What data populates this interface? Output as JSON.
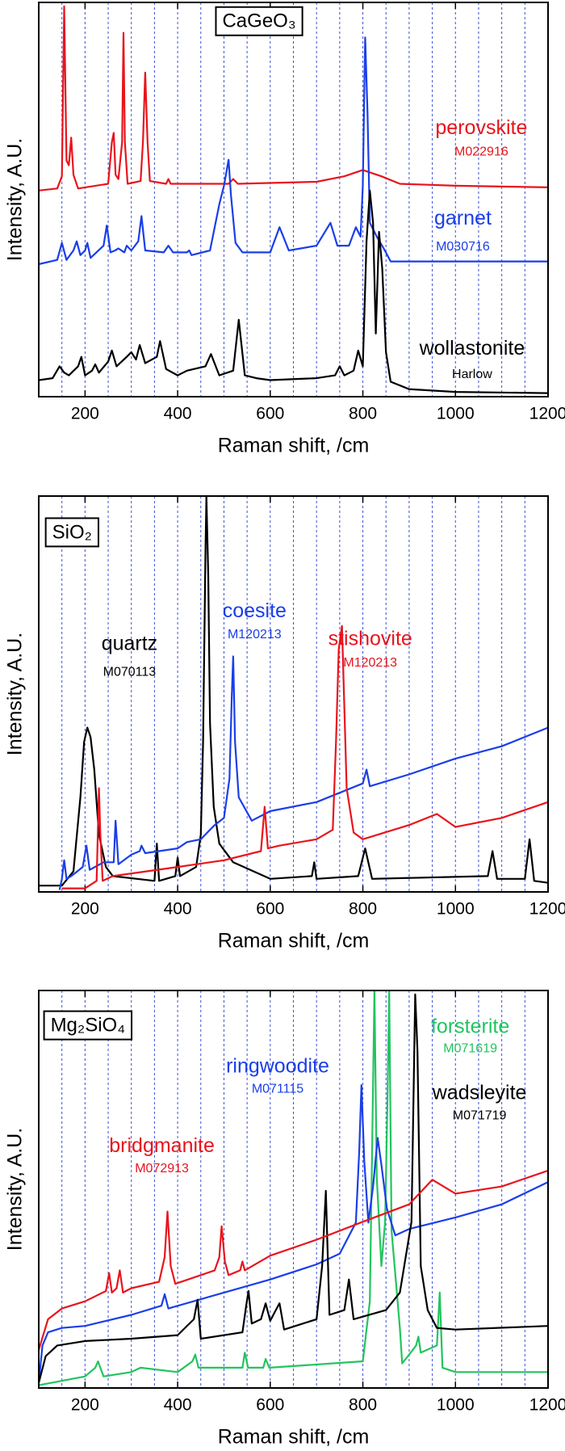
{
  "chart_data": [
    {
      "type": "line",
      "title": "CaGeO₃",
      "xlabel": "Raman shift, /cm",
      "ylabel": "Intensity, A.U.",
      "xlim": [
        100,
        1200
      ],
      "ylim": [
        0,
        100
      ],
      "xticks": [
        200,
        400,
        600,
        800,
        1000,
        1200
      ],
      "xgrid": [
        150,
        200,
        250,
        300,
        350,
        400,
        450,
        500,
        550,
        600,
        650,
        700,
        750,
        800,
        850,
        900,
        950,
        1000,
        1050,
        1100,
        1150
      ],
      "grid_color": "#3a4fd6",
      "series": [
        {
          "name": "perovskite",
          "sample_id": "M022916",
          "color": "#e8141c",
          "x": [
            100,
            140,
            150,
            155,
            160,
            165,
            170,
            175,
            185,
            250,
            258,
            262,
            266,
            272,
            280,
            283,
            286,
            292,
            320,
            325,
            330,
            335,
            340,
            375,
            380,
            385,
            510,
            520,
            530,
            700,
            760,
            800,
            840,
            880,
            1000,
            1200
          ],
          "values": [
            52.3,
            52.8,
            55.9,
            99,
            59.9,
            58.7,
            65.7,
            56.3,
            52.8,
            54,
            64.6,
            66.9,
            56.3,
            55.2,
            64.6,
            92.3,
            64.6,
            54,
            54.7,
            64.6,
            82.2,
            64.6,
            54.7,
            54,
            55.2,
            54,
            54,
            55.2,
            54,
            54.5,
            55.9,
            57.5,
            55.9,
            54,
            53.5,
            53.1
          ]
        },
        {
          "name": "garnet",
          "sample_id": "M030716",
          "color": "#1a3ee8",
          "x": [
            100,
            140,
            150,
            160,
            175,
            182,
            190,
            200,
            205,
            212,
            240,
            247,
            255,
            265,
            272,
            285,
            290,
            300,
            315,
            322,
            330,
            370,
            380,
            390,
            420,
            425,
            430,
            470,
            490,
            500,
            510,
            515,
            525,
            540,
            600,
            620,
            640,
            700,
            730,
            745,
            770,
            785,
            795,
            800,
            805,
            810,
            815,
            830,
            845,
            860,
            1000,
            1200
          ],
          "values": [
            33.6,
            34.7,
            39,
            34.7,
            37.1,
            39.4,
            35.9,
            37.1,
            39,
            35.2,
            38.3,
            43.4,
            36.6,
            37.1,
            37.6,
            36.6,
            38.3,
            37.1,
            39.4,
            45.8,
            37.1,
            36.6,
            38.3,
            36.6,
            36.6,
            37.1,
            35.9,
            37.1,
            48.8,
            53.5,
            60.1,
            51.2,
            39,
            36.6,
            36.6,
            43,
            37.1,
            38.3,
            44.1,
            38.3,
            38.3,
            43,
            40.6,
            53.5,
            91.1,
            72.3,
            44.1,
            40.6,
            37.6,
            34.3,
            34.3,
            34.3
          ]
        },
        {
          "name": "wollastonite",
          "sample_id": "Harlow",
          "color": "#000000",
          "x": [
            100,
            130,
            145,
            155,
            165,
            185,
            192,
            200,
            215,
            222,
            230,
            250,
            258,
            268,
            290,
            300,
            310,
            318,
            330,
            355,
            362,
            375,
            400,
            420,
            460,
            472,
            490,
            520,
            532,
            545,
            570,
            600,
            700,
            740,
            750,
            760,
            780,
            790,
            800,
            808,
            815,
            822,
            828,
            835,
            842,
            850,
            860,
            900,
            1000,
            1200
          ],
          "values": [
            4.2,
            4.7,
            7.7,
            6.1,
            5.4,
            7.7,
            10.1,
            5.4,
            6.6,
            8.2,
            6.1,
            8.9,
            11.7,
            7.7,
            10.1,
            11.3,
            9.4,
            13.1,
            8.5,
            10.1,
            14.1,
            7,
            5.4,
            6.6,
            7.7,
            10.8,
            5.4,
            6.6,
            19.5,
            5.4,
            4.7,
            4.2,
            4.7,
            5.4,
            7.7,
            5.4,
            6.6,
            11.7,
            7.7,
            39.4,
            52.3,
            44.1,
            16,
            41.8,
            32.4,
            11.3,
            3.8,
            1.9,
            1.2,
            0.9
          ]
        }
      ]
    },
    {
      "type": "line",
      "title": "SiO₂",
      "xlabel": "Raman shift, /cm",
      "ylabel": "Intensity, A.U.",
      "xlim": [
        100,
        1200
      ],
      "ylim": [
        0,
        100
      ],
      "xticks": [
        200,
        400,
        600,
        800,
        1000,
        1200
      ],
      "xgrid": [
        150,
        200,
        250,
        300,
        350,
        400,
        450,
        500,
        550,
        600,
        650,
        700,
        750,
        800,
        850,
        900,
        950,
        1000,
        1050,
        1100,
        1150
      ],
      "grid_color": "#3a4fd6",
      "series": [
        {
          "name": "quartz",
          "sample_id": "M070113",
          "color": "#000000",
          "x": [
            100,
            150,
            175,
            190,
            198,
            205,
            212,
            220,
            230,
            245,
            260,
            350,
            355,
            360,
            395,
            400,
            405,
            440,
            450,
            455,
            460,
            462,
            466,
            470,
            478,
            490,
            520,
            600,
            690,
            695,
            700,
            790,
            805,
            820,
            1070,
            1080,
            1090,
            1150,
            1160,
            1170,
            1200
          ],
          "values": [
            1.6,
            1.6,
            5.2,
            23.9,
            37.9,
            41.5,
            39.1,
            30.9,
            14.5,
            6.3,
            4,
            2.8,
            12.2,
            2.8,
            4,
            8.7,
            4,
            6.3,
            14.5,
            37.9,
            84.8,
            100,
            80.1,
            42.6,
            21.5,
            12.2,
            7.5,
            3.3,
            4,
            7.5,
            3.3,
            4,
            11,
            3.3,
            4,
            10.3,
            3.3,
            3.3,
            13.3,
            2.8,
            2.3
          ]
        },
        {
          "name": "coesite",
          "sample_id": "M120213",
          "color": "#1a3ee8",
          "x": [
            145,
            150,
            155,
            160,
            170,
            178,
            195,
            203,
            210,
            240,
            262,
            266,
            272,
            300,
            318,
            322,
            330,
            400,
            420,
            450,
            480,
            500,
            512,
            517,
            520,
            524,
            532,
            560,
            600,
            700,
            800,
            808,
            815,
            900,
            1000,
            1100,
            1200
          ],
          "values": [
            0.5,
            3.3,
            8,
            3.3,
            4,
            4.7,
            6.3,
            11.7,
            5.6,
            7.5,
            7.5,
            18,
            7,
            9.4,
            10.3,
            11.7,
            9.8,
            11,
            12.6,
            13.3,
            16.9,
            18.7,
            28.6,
            49.6,
            59.5,
            37.9,
            23.9,
            18,
            20.4,
            22.7,
            27.4,
            30.9,
            26.7,
            29.7,
            33.7,
            36.8,
            41.5
          ]
        },
        {
          "name": "stishovite",
          "sample_id": "M120213",
          "color": "#e8141c",
          "x": [
            150,
            200,
            225,
            230,
            233,
            238,
            260,
            400,
            500,
            580,
            588,
            595,
            620,
            700,
            735,
            742,
            748,
            755,
            765,
            780,
            800,
            900,
            960,
            1000,
            1100,
            1200
          ],
          "values": [
            0.9,
            0.9,
            2.8,
            26.2,
            14.5,
            2.8,
            4,
            6.3,
            8,
            10.3,
            21.5,
            11,
            11.7,
            13.3,
            15.7,
            37.9,
            61.4,
            67.2,
            26.2,
            15,
            13.3,
            16.9,
            19.7,
            16.4,
            18.7,
            22.7
          ]
        }
      ]
    },
    {
      "type": "line",
      "title": "Mg₂SiO₄",
      "xlabel": "Raman shift, /cm",
      "ylabel": "Intensity, A.U.",
      "xlim": [
        100,
        1200
      ],
      "ylim": [
        0,
        100
      ],
      "xticks": [
        200,
        400,
        600,
        800,
        1000,
        1200
      ],
      "xgrid": [
        150,
        200,
        250,
        300,
        350,
        400,
        450,
        500,
        550,
        600,
        650,
        700,
        750,
        800,
        850,
        900,
        950,
        1000,
        1050,
        1100,
        1150
      ],
      "grid_color": "#3a4fd6",
      "series": [
        {
          "name": "forsterite",
          "sample_id": "M071619",
          "color": "#22c45e",
          "x": [
            100,
            200,
            222,
            228,
            240,
            300,
            320,
            400,
            432,
            438,
            445,
            540,
            545,
            552,
            585,
            590,
            598,
            800,
            815,
            820,
            825,
            830,
            840,
            848,
            853,
            857,
            862,
            875,
            880,
            885,
            900,
            915,
            920,
            925,
            960,
            966,
            972,
            1000,
            1200
          ],
          "values": [
            0.7,
            2.9,
            5.1,
            6.7,
            2.9,
            4,
            5.1,
            4,
            6.7,
            8.4,
            5.1,
            5.1,
            8.9,
            5.1,
            5.1,
            7.3,
            5.1,
            6.7,
            21.8,
            59.6,
            100,
            52.9,
            30.7,
            41.8,
            70.7,
            100,
            39.6,
            21.8,
            15.1,
            6.2,
            8.4,
            10.7,
            12.9,
            8.9,
            10.7,
            24,
            5.1,
            4,
            4
          ]
        },
        {
          "name": "ringwoodite",
          "sample_id": "M071115",
          "color": "#1a3ee8",
          "x": [
            100,
            108,
            120,
            150,
            200,
            300,
            365,
            372,
            380,
            500,
            600,
            700,
            750,
            785,
            792,
            797,
            803,
            812,
            822,
            832,
            840,
            852,
            870,
            900,
            1000,
            1100,
            1200
          ],
          "values": [
            1.3,
            10.7,
            14,
            15.1,
            15.6,
            18.4,
            20.7,
            23.6,
            20,
            24,
            27.3,
            31.1,
            33.8,
            41.6,
            59.3,
            76.2,
            57.1,
            41.6,
            50.7,
            62.9,
            56.2,
            45.1,
            38.4,
            40,
            42.9,
            46.2,
            51.8
          ]
        },
        {
          "name": "wadsleyite",
          "sample_id": "M071719",
          "color": "#000000",
          "x": [
            100,
            115,
            140,
            200,
            300,
            400,
            435,
            443,
            450,
            540,
            548,
            553,
            560,
            580,
            590,
            600,
            612,
            620,
            630,
            700,
            712,
            720,
            728,
            760,
            770,
            780,
            850,
            880,
            905,
            913,
            918,
            925,
            940,
            960,
            1000,
            1200
          ],
          "values": [
            1.3,
            8,
            10.7,
            11.8,
            12.4,
            13.3,
            17.3,
            22.2,
            12.4,
            14,
            20.7,
            24.4,
            16.2,
            17.3,
            21.3,
            16.9,
            19.6,
            21.3,
            14.7,
            17.3,
            30.7,
            49.6,
            18.4,
            19.6,
            27.3,
            17.3,
            19.6,
            24,
            41.8,
            99,
            85,
            30.7,
            19.6,
            15.1,
            14.7,
            15.6
          ]
        },
        {
          "name": "bridgmanite",
          "sample_id": "M072913",
          "color": "#e8141c",
          "x": [
            100,
            120,
            150,
            200,
            245,
            252,
            258,
            268,
            275,
            282,
            300,
            360,
            372,
            378,
            385,
            395,
            480,
            490,
            495,
            502,
            510,
            535,
            540,
            545,
            600,
            700,
            800,
            900,
            950,
            1000,
            1100,
            1200
          ],
          "values": [
            9.6,
            17.3,
            20,
            21.8,
            24.4,
            28.9,
            24,
            25.1,
            29.6,
            24,
            25.1,
            26.7,
            32.9,
            44.4,
            30.7,
            26.2,
            29.6,
            32.9,
            40.7,
            31.8,
            28.4,
            29.6,
            31.8,
            29.6,
            33.3,
            37.3,
            41.8,
            46.2,
            52.4,
            48.9,
            50.7,
            54.7
          ]
        }
      ]
    }
  ]
}
